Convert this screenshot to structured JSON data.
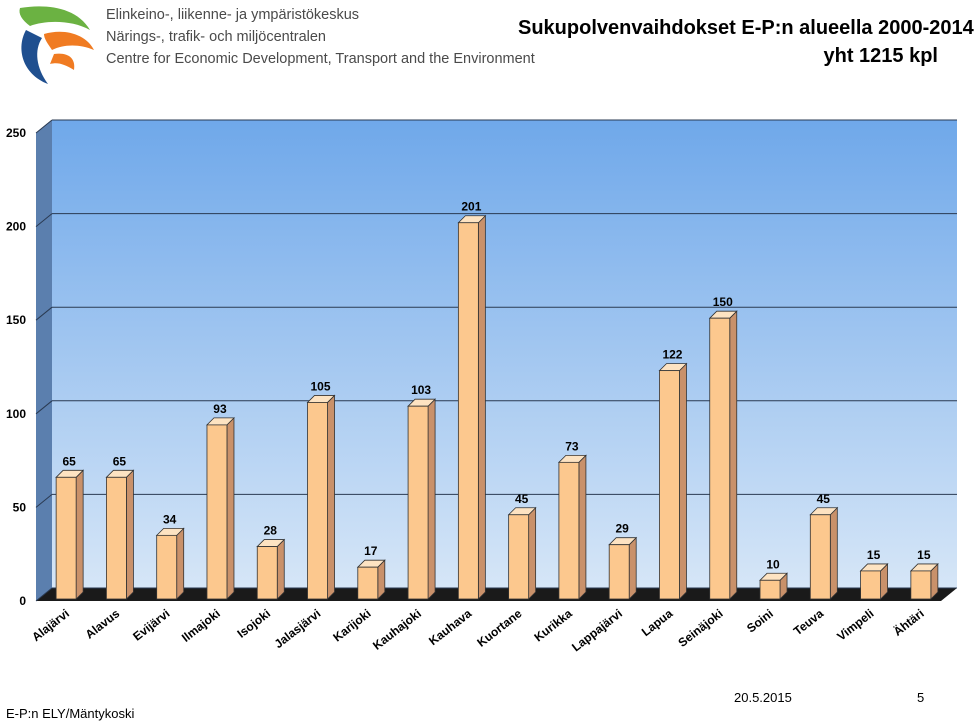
{
  "header": {
    "logo_lines": [
      "Elinkeino-, liikenne- ja ympäristökeskus",
      "Närings-, trafik- och miljöcentralen",
      "Centre for Economic Development, Transport and the Environment"
    ],
    "title_line1": "Sukupolvenvaihdokset E-P:n alueella 2000-2014",
    "title_line2": "yht 1215 kpl"
  },
  "footer": {
    "author": "E-P:n ELY/Mäntykoski",
    "date": "20.5.2015",
    "page": "5"
  },
  "colors": {
    "bar_front": "#fcc88e",
    "bar_top": "#fde3c2",
    "bar_side": "#c9916a",
    "plot_top": "#6fa8ea",
    "plot_bottom": "#d6e6f7",
    "floor": "#1a1a1a",
    "logo_green": "#6bb242",
    "logo_orange": "#f07b22",
    "logo_blue": "#1f4f8f"
  },
  "chart_data": {
    "type": "bar",
    "title": "Sukupolvenvaihdokset E-P:n alueella 2000-2014",
    "subtitle": "yht 1215 kpl",
    "xlabel": "",
    "ylabel": "",
    "ylim": [
      0,
      250
    ],
    "yticks": [
      0,
      50,
      100,
      150,
      200,
      250
    ],
    "grid": true,
    "legend": "none",
    "categories": [
      "Alajärvi",
      "Alavus",
      "Evijärvi",
      "Ilmajoki",
      "Isojoki",
      "Jalasjärvi",
      "Karijoki",
      "Kauhajoki",
      "Kauhava",
      "Kuortane",
      "Kurikka",
      "Lappajärvi",
      "Lapua",
      "Seinäjoki",
      "Soini",
      "Teuva",
      "Vimpeli",
      "Ähtäri"
    ],
    "values": [
      65,
      65,
      34,
      93,
      28,
      105,
      17,
      103,
      201,
      45,
      73,
      29,
      122,
      150,
      10,
      45,
      15,
      15
    ]
  }
}
